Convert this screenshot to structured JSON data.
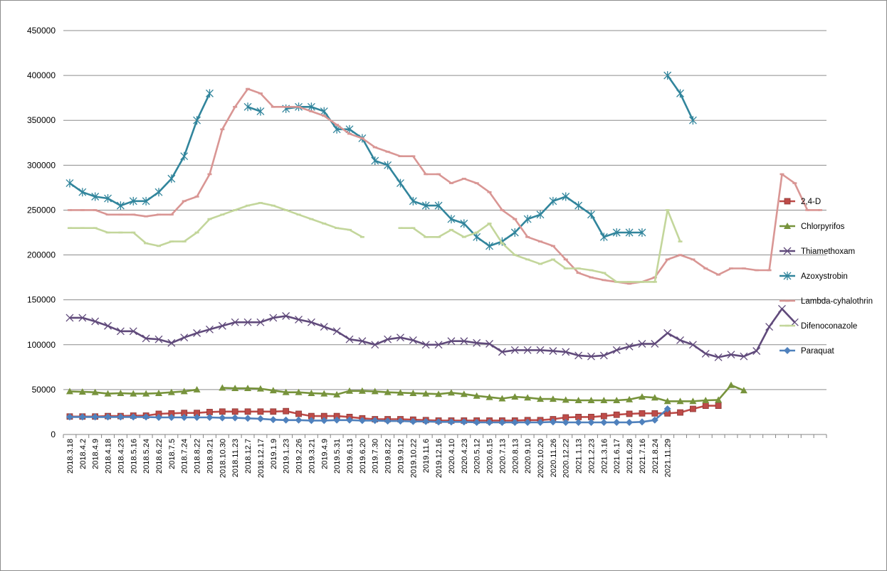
{
  "chart_data": {
    "type": "line",
    "title": "",
    "xlabel": "",
    "ylabel": "",
    "ylim": [
      0,
      450000
    ],
    "yticks": [
      0,
      50000,
      100000,
      150000,
      200000,
      250000,
      300000,
      350000,
      400000,
      450000
    ],
    "grid": "horizontal",
    "legend_position": "right",
    "n_points": 60,
    "x_tick_labels": [
      "2018.3.18",
      "2018.4.2",
      "2018.4.9",
      "2018.4.18",
      "2018.4.23",
      "2018.5.16",
      "2018.5.24",
      "2018.6.22",
      "2018.7.5",
      "2018.7.24",
      "2018.8.22",
      "2018.9.21",
      "2018.10.30",
      "2018.11.23",
      "2018.12.7",
      "2018.12.17",
      "2019.1.9",
      "2019.1.23",
      "2019.2.26",
      "2019.3.21",
      "2019.4.9",
      "2019.5.31",
      "2019.6.13",
      "2019.6.20",
      "2019.7.30",
      "2019.8.22",
      "2019.9.12",
      "2019.10.22",
      "2019.11.6",
      "2019.12.16",
      "2020.4.10",
      "2020.4.23",
      "2020.5.12",
      "2020.6.15",
      "2020.7.13",
      "2020.8.13",
      "2020.9.10",
      "2020.10.20",
      "2020.11.26",
      "2020.12.22",
      "2021.1.13",
      "2021.2.23",
      "2021.3.16",
      "2021.6.17",
      "2021.6.28",
      "2021.7.16",
      "2021.8.24",
      "2021.11.29"
    ],
    "series": [
      {
        "name": "2,4-D",
        "color": "#be4b48",
        "marker": "square",
        "values": [
          20000,
          20000,
          20000,
          20500,
          20500,
          21000,
          21000,
          23000,
          23500,
          24000,
          24000,
          25000,
          25500,
          25500,
          25500,
          25500,
          25500,
          26000,
          23000,
          20500,
          20500,
          20500,
          19500,
          18000,
          17000,
          17000,
          17000,
          16500,
          16000,
          15500,
          15500,
          15500,
          15500,
          15500,
          15500,
          15500,
          16000,
          16000,
          17000,
          19000,
          19500,
          19500,
          20500,
          22000,
          23000,
          23500,
          23500,
          23500,
          24500,
          28500,
          32000,
          32000,
          null,
          null,
          null,
          null,
          null,
          null,
          null,
          null
        ]
      },
      {
        "name": "Chlorpyrifos",
        "color": "#77933c",
        "marker": "triangle",
        "values": [
          48000,
          47500,
          47000,
          45500,
          46000,
          45500,
          45500,
          46000,
          47000,
          48000,
          50000,
          null,
          52000,
          51500,
          51500,
          51000,
          49000,
          47000,
          47000,
          46000,
          45500,
          44500,
          48500,
          48500,
          48000,
          47000,
          46500,
          46000,
          45500,
          45000,
          46500,
          45000,
          43000,
          41500,
          40000,
          42000,
          41000,
          39500,
          39500,
          38500,
          38000,
          38000,
          38000,
          38000,
          39000,
          42000,
          41000,
          37000,
          37000,
          37000,
          38000,
          38500,
          55000,
          49000,
          null,
          null,
          null,
          null,
          null,
          null
        ]
      },
      {
        "name": "Thiamethoxam",
        "color": "#604a7b",
        "marker": "x",
        "values": [
          130000,
          130000,
          126000,
          121000,
          115000,
          115000,
          107000,
          106000,
          102000,
          108000,
          113000,
          117000,
          121000,
          125000,
          125000,
          125000,
          130000,
          132000,
          128000,
          125000,
          120000,
          115000,
          106000,
          104000,
          100000,
          106000,
          108000,
          105000,
          100000,
          100000,
          104000,
          104000,
          102000,
          101000,
          92000,
          94000,
          94000,
          94000,
          93000,
          92000,
          88000,
          87000,
          88000,
          94000,
          98000,
          101000,
          101000,
          113000,
          105000,
          100000,
          90000,
          86000,
          89000,
          87000,
          93000,
          120000,
          140000,
          125000,
          null,
          null
        ]
      },
      {
        "name": "Azoxystrobin",
        "color": "#31859c",
        "marker": "star",
        "values": [
          280000,
          270000,
          265000,
          263000,
          255000,
          260000,
          260000,
          270000,
          285000,
          310000,
          350000,
          380000,
          null,
          null,
          365000,
          360000,
          null,
          363000,
          365000,
          365000,
          360000,
          340000,
          340000,
          330000,
          305000,
          300000,
          280000,
          260000,
          255000,
          255000,
          240000,
          235000,
          220000,
          210000,
          215000,
          225000,
          240000,
          245000,
          260000,
          265000,
          255000,
          245000,
          220000,
          225000,
          225000,
          225000,
          null,
          400000,
          380000,
          350000,
          null,
          null,
          null,
          null,
          null,
          null,
          null,
          null,
          null,
          null
        ]
      },
      {
        "name": "Lambda-cyhalothrin",
        "color": "#d99694",
        "marker": "dash",
        "values": [
          250000,
          250000,
          250000,
          245000,
          245000,
          245000,
          243000,
          245000,
          245000,
          260000,
          265000,
          290000,
          340000,
          365000,
          385000,
          380000,
          365000,
          365000,
          365000,
          360000,
          355000,
          345000,
          335000,
          330000,
          320000,
          315000,
          310000,
          310000,
          290000,
          290000,
          280000,
          285000,
          280000,
          270000,
          250000,
          240000,
          220000,
          215000,
          210000,
          195000,
          180000,
          175000,
          172000,
          170000,
          168000,
          170000,
          175000,
          195000,
          200000,
          195000,
          185000,
          178000,
          185000,
          185000,
          183000,
          183000,
          290000,
          280000,
          250000,
          250000
        ]
      },
      {
        "name": "Difenoconazole",
        "color": "#c3d69b",
        "marker": "dash",
        "values": [
          230000,
          230000,
          230000,
          225000,
          225000,
          225000,
          213000,
          210000,
          215000,
          215000,
          225000,
          240000,
          245000,
          250000,
          255000,
          258000,
          255000,
          250000,
          245000,
          240000,
          235000,
          230000,
          228000,
          220000,
          null,
          null,
          230000,
          230000,
          220000,
          220000,
          228000,
          220000,
          225000,
          235000,
          213000,
          200000,
          195000,
          190000,
          195000,
          185000,
          185000,
          183000,
          180000,
          170000,
          170000,
          170000,
          170000,
          250000,
          215000,
          null,
          null,
          null,
          null,
          null,
          null,
          null,
          null,
          null,
          null,
          null
        ]
      },
      {
        "name": "Paraquat",
        "color": "#4f81bd",
        "marker": "diamond",
        "values": [
          19500,
          19500,
          19500,
          19500,
          19500,
          19500,
          19500,
          19000,
          19000,
          19000,
          19000,
          19000,
          18500,
          18500,
          18000,
          17500,
          16500,
          16000,
          16000,
          15500,
          15500,
          16000,
          16000,
          15500,
          15500,
          15000,
          15000,
          14500,
          14500,
          14000,
          14000,
          14000,
          13500,
          13500,
          13500,
          13500,
          13500,
          13500,
          14000,
          13500,
          13500,
          13500,
          13500,
          13500,
          13500,
          14000,
          16000,
          28500,
          null,
          null,
          null,
          null,
          null,
          null,
          null,
          null,
          null,
          null,
          null,
          null
        ]
      }
    ]
  }
}
